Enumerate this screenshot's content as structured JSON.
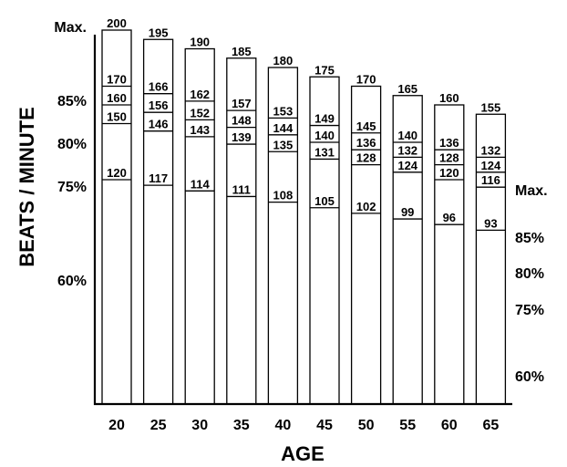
{
  "chart_data": {
    "type": "bar",
    "xlabel": "AGE",
    "ylabel": "BEATS / MINUTE",
    "categories": [
      "20",
      "25",
      "30",
      "35",
      "40",
      "45",
      "50",
      "55",
      "60",
      "65"
    ],
    "series": [
      {
        "name": "Max.",
        "values": [
          200,
          195,
          190,
          185,
          180,
          175,
          170,
          165,
          160,
          155
        ]
      },
      {
        "name": "85%",
        "values": [
          170,
          166,
          162,
          157,
          153,
          149,
          145,
          140,
          136,
          132
        ]
      },
      {
        "name": "80%",
        "values": [
          160,
          156,
          152,
          148,
          144,
          140,
          136,
          132,
          128,
          124
        ]
      },
      {
        "name": "75%",
        "values": [
          150,
          146,
          143,
          139,
          135,
          131,
          128,
          124,
          120,
          116
        ]
      },
      {
        "name": "60%",
        "values": [
          120,
          117,
          114,
          111,
          108,
          105,
          102,
          99,
          96,
          93
        ]
      }
    ],
    "left_labels": [
      "Max.",
      "85%",
      "80%",
      "75%",
      "60%"
    ],
    "right_labels": [
      "Max.",
      "85%",
      "80%",
      "75%",
      "60%"
    ],
    "ylim": [
      0,
      200
    ],
    "grid": false,
    "legend": "none"
  }
}
